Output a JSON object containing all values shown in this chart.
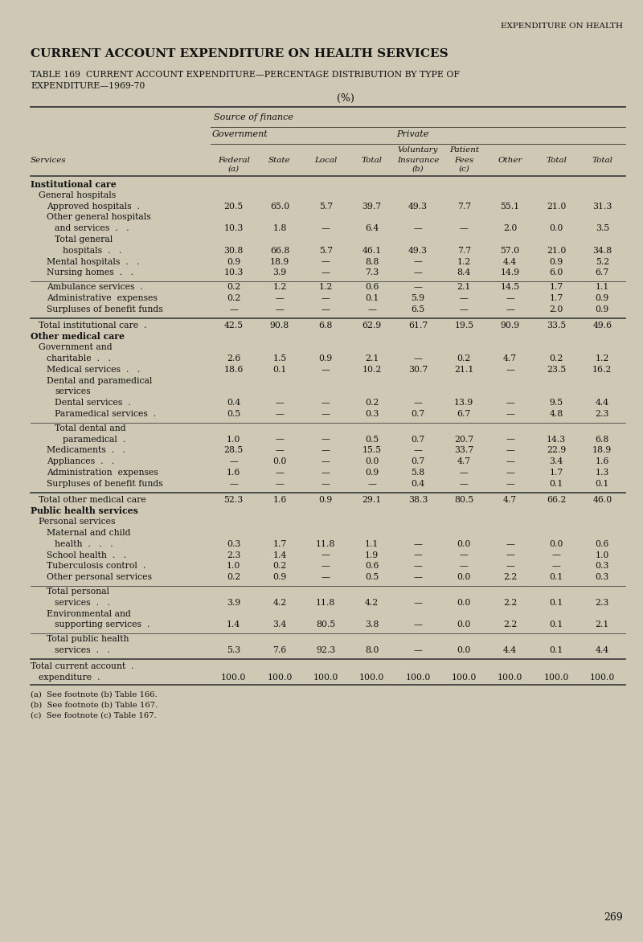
{
  "page_header": "EXPENDITURE ON HEALTH",
  "title": "CURRENT ACCOUNT EXPENDITURE ON HEALTH SERVICES",
  "subtitle_line1": "TABLE 169  CURRENT ACCOUNT EXPENDITURE—PERCENTAGE DISTRIBUTION BY TYPE OF",
  "subtitle_line2": "EXPENDITURE—1969-70",
  "pct_label": "(%)",
  "bg_color": "#cec8b4",
  "text_color": "#111111",
  "footnotes": [
    "(a)  See footnote (b) Table 166.",
    "(b)  See footnote (b) Table 167.",
    "(c)  See footnote (c) Table 167."
  ],
  "page_number": "269",
  "rows": [
    {
      "label": "Institutional care",
      "indent": 0,
      "bold": true,
      "values": null,
      "type": "data"
    },
    {
      "label": "General hospitals",
      "indent": 1,
      "bold": false,
      "values": null,
      "type": "data"
    },
    {
      "label": "Approved hospitals  .",
      "indent": 2,
      "bold": false,
      "values": [
        "20.5",
        "65.0",
        "5.7",
        "39.7",
        "49.3",
        "7.7",
        "55.1",
        "21.0",
        "31.3"
      ],
      "type": "data"
    },
    {
      "label": "Other general hospitals",
      "indent": 2,
      "bold": false,
      "values": null,
      "type": "data"
    },
    {
      "label": "and services  .   .",
      "indent": 3,
      "bold": false,
      "values": [
        "10.3",
        "1.8",
        "—",
        "6.4",
        "—",
        "—",
        "2.0",
        "0.0",
        "3.5"
      ],
      "type": "data"
    },
    {
      "label": "Total general",
      "indent": 3,
      "bold": false,
      "values": null,
      "type": "data"
    },
    {
      "label": "hospitals  .   .",
      "indent": 4,
      "bold": false,
      "values": [
        "30.8",
        "66.8",
        "5.7",
        "46.1",
        "49.3",
        "7.7",
        "57.0",
        "21.0",
        "34.8"
      ],
      "type": "data"
    },
    {
      "label": "Mental hospitals  .   .",
      "indent": 2,
      "bold": false,
      "values": [
        "0.9",
        "18.9",
        "—",
        "8.8",
        "—",
        "1.2",
        "4.4",
        "0.9",
        "5.2"
      ],
      "type": "data"
    },
    {
      "label": "Nursing homes  .   .",
      "indent": 2,
      "bold": false,
      "values": [
        "10.3",
        "3.9",
        "—",
        "7.3",
        "—",
        "8.4",
        "14.9",
        "6.0",
        "6.7"
      ],
      "type": "data"
    },
    {
      "label": "",
      "indent": 0,
      "bold": false,
      "values": null,
      "type": "thin_line"
    },
    {
      "label": "Ambulance services  .",
      "indent": 2,
      "bold": false,
      "values": [
        "0.2",
        "1.2",
        "1.2",
        "0.6",
        "—",
        "2.1",
        "14.5",
        "1.7",
        "1.1"
      ],
      "type": "data"
    },
    {
      "label": "Administrative  expenses",
      "indent": 2,
      "bold": false,
      "values": [
        "0.2",
        "—",
        "—",
        "0.1",
        "5.9",
        "—",
        "—",
        "1.7",
        "0.9"
      ],
      "type": "data"
    },
    {
      "label": "Surpluses of benefit funds",
      "indent": 2,
      "bold": false,
      "values": [
        "—",
        "—",
        "—",
        "—",
        "6.5",
        "—",
        "—",
        "2.0",
        "0.9"
      ],
      "type": "data"
    },
    {
      "label": "",
      "indent": 0,
      "bold": false,
      "values": null,
      "type": "thick_line"
    },
    {
      "label": "Total institutional care  .",
      "indent": 1,
      "bold": false,
      "values": [
        "42.5",
        "90.8",
        "6.8",
        "62.9",
        "61.7",
        "19.5",
        "90.9",
        "33.5",
        "49.6"
      ],
      "type": "data"
    },
    {
      "label": "Other medical care",
      "indent": 0,
      "bold": true,
      "values": null,
      "type": "data"
    },
    {
      "label": "Government and",
      "indent": 1,
      "bold": false,
      "values": null,
      "type": "data"
    },
    {
      "label": "charitable  .   .",
      "indent": 2,
      "bold": false,
      "values": [
        "2.6",
        "1.5",
        "0.9",
        "2.1",
        "—",
        "0.2",
        "4.7",
        "0.2",
        "1.2"
      ],
      "type": "data"
    },
    {
      "label": "Medical services  .   .",
      "indent": 2,
      "bold": false,
      "values": [
        "18.6",
        "0.1",
        "—",
        "10.2",
        "30.7",
        "21.1",
        "—",
        "23.5",
        "16.2"
      ],
      "type": "data"
    },
    {
      "label": "Dental and paramedical",
      "indent": 2,
      "bold": false,
      "values": null,
      "type": "data"
    },
    {
      "label": "services",
      "indent": 3,
      "bold": false,
      "values": null,
      "type": "data"
    },
    {
      "label": "Dental services  .",
      "indent": 3,
      "bold": false,
      "values": [
        "0.4",
        "—",
        "—",
        "0.2",
        "—",
        "13.9",
        "—",
        "9.5",
        "4.4"
      ],
      "type": "data"
    },
    {
      "label": "Paramedical services  .",
      "indent": 3,
      "bold": false,
      "values": [
        "0.5",
        "—",
        "—",
        "0.3",
        "0.7",
        "6.7",
        "—",
        "4.8",
        "2.3"
      ],
      "type": "data"
    },
    {
      "label": "",
      "indent": 0,
      "bold": false,
      "values": null,
      "type": "thin_line"
    },
    {
      "label": "Total dental and",
      "indent": 3,
      "bold": false,
      "values": null,
      "type": "data"
    },
    {
      "label": "paramedical  .",
      "indent": 4,
      "bold": false,
      "values": [
        "1.0",
        "—",
        "—",
        "0.5",
        "0.7",
        "20.7",
        "—",
        "14.3",
        "6.8"
      ],
      "type": "data"
    },
    {
      "label": "Medicaments  .   .",
      "indent": 2,
      "bold": false,
      "values": [
        "28.5",
        "—",
        "—",
        "15.5",
        "—",
        "33.7",
        "—",
        "22.9",
        "18.9"
      ],
      "type": "data"
    },
    {
      "label": "Appliances  .   .",
      "indent": 2,
      "bold": false,
      "values": [
        "—",
        "0.0",
        "—",
        "0.0",
        "0.7",
        "4.7",
        "—",
        "3.4",
        "1.6"
      ],
      "type": "data"
    },
    {
      "label": "Administration  expenses",
      "indent": 2,
      "bold": false,
      "values": [
        "1.6",
        "—",
        "—",
        "0.9",
        "5.8",
        "—",
        "—",
        "1.7",
        "1.3"
      ],
      "type": "data"
    },
    {
      "label": "Surpluses of benefit funds",
      "indent": 2,
      "bold": false,
      "values": [
        "—",
        "—",
        "—",
        "—",
        "0.4",
        "—",
        "—",
        "0.1",
        "0.1"
      ],
      "type": "data"
    },
    {
      "label": "",
      "indent": 0,
      "bold": false,
      "values": null,
      "type": "thick_line"
    },
    {
      "label": "Total other medical care",
      "indent": 1,
      "bold": false,
      "values": [
        "52.3",
        "1.6",
        "0.9",
        "29.1",
        "38.3",
        "80.5",
        "4.7",
        "66.2",
        "46.0"
      ],
      "type": "data"
    },
    {
      "label": "Public health services",
      "indent": 0,
      "bold": true,
      "values": null,
      "type": "data"
    },
    {
      "label": "Personal services",
      "indent": 1,
      "bold": false,
      "values": null,
      "type": "data"
    },
    {
      "label": "Maternal and child",
      "indent": 2,
      "bold": false,
      "values": null,
      "type": "data"
    },
    {
      "label": "health  .   .   .",
      "indent": 3,
      "bold": false,
      "values": [
        "0.3",
        "1.7",
        "11.8",
        "1.1",
        "—",
        "0.0",
        "—",
        "0.0",
        "0.6"
      ],
      "type": "data"
    },
    {
      "label": "School health  .   .",
      "indent": 2,
      "bold": false,
      "values": [
        "2.3",
        "1.4",
        "—",
        "1.9",
        "—",
        "—",
        "—",
        "—",
        "1.0"
      ],
      "type": "data"
    },
    {
      "label": "Tuberculosis control  .",
      "indent": 2,
      "bold": false,
      "values": [
        "1.0",
        "0.2",
        "—",
        "0.6",
        "—",
        "—",
        "—",
        "—",
        "0.3"
      ],
      "type": "data"
    },
    {
      "label": "Other personal services",
      "indent": 2,
      "bold": false,
      "values": [
        "0.2",
        "0.9",
        "—",
        "0.5",
        "—",
        "0.0",
        "2.2",
        "0.1",
        "0.3"
      ],
      "type": "data"
    },
    {
      "label": "",
      "indent": 0,
      "bold": false,
      "values": null,
      "type": "thin_line"
    },
    {
      "label": "Total personal",
      "indent": 2,
      "bold": false,
      "values": null,
      "type": "data"
    },
    {
      "label": "services  .   .",
      "indent": 3,
      "bold": false,
      "values": [
        "3.9",
        "4.2",
        "11.8",
        "4.2",
        "—",
        "0.0",
        "2.2",
        "0.1",
        "2.3"
      ],
      "type": "data"
    },
    {
      "label": "Environmental and",
      "indent": 2,
      "bold": false,
      "values": null,
      "type": "data"
    },
    {
      "label": "supporting services  .",
      "indent": 3,
      "bold": false,
      "values": [
        "1.4",
        "3.4",
        "80.5",
        "3.8",
        "—",
        "0.0",
        "2.2",
        "0.1",
        "2.1"
      ],
      "type": "data"
    },
    {
      "label": "",
      "indent": 0,
      "bold": false,
      "values": null,
      "type": "thin_line"
    },
    {
      "label": "Total public health",
      "indent": 2,
      "bold": false,
      "values": null,
      "type": "data"
    },
    {
      "label": "services  .   .",
      "indent": 3,
      "bold": false,
      "values": [
        "5.3",
        "7.6",
        "92.3",
        "8.0",
        "—",
        "0.0",
        "4.4",
        "0.1",
        "4.4"
      ],
      "type": "data"
    },
    {
      "label": "",
      "indent": 0,
      "bold": false,
      "values": null,
      "type": "thick_line"
    },
    {
      "label": "Total current account  .",
      "indent": 0,
      "bold": false,
      "values": null,
      "type": "data"
    },
    {
      "label": "expenditure  .",
      "indent": 1,
      "bold": false,
      "values": [
        "100.0",
        "100.0",
        "100.0",
        "100.0",
        "100.0",
        "100.0",
        "100.0",
        "100.0",
        "100.0"
      ],
      "type": "data"
    }
  ]
}
